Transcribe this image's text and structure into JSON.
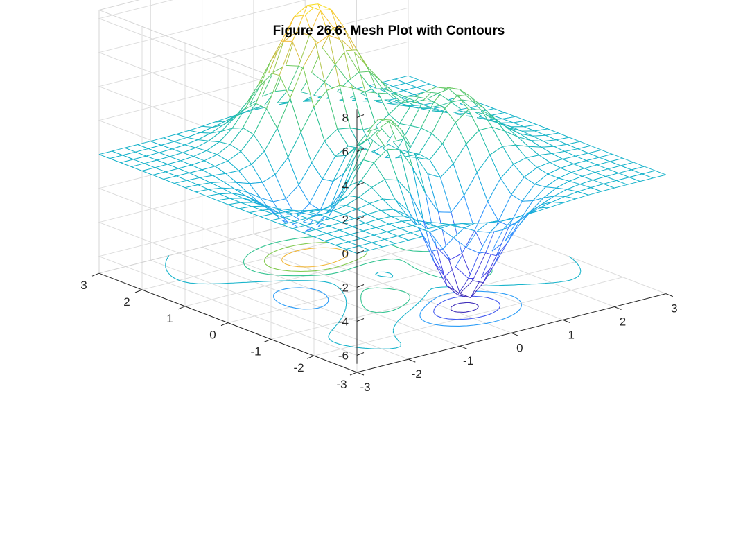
{
  "chart_data": {
    "type": "surface",
    "subtype": "mesh with contours below",
    "title": "Figure 26.6: Mesh Plot with Contours",
    "xlabel": "",
    "ylabel": "",
    "zlabel": "",
    "function": "peaks",
    "x_range": [
      -3,
      3
    ],
    "y_range": [
      -3,
      3
    ],
    "z_range": [
      -6.55,
      8.1
    ],
    "xlim": [
      -3,
      3
    ],
    "ylim": [
      -3,
      3
    ],
    "zlim": [
      -6.5,
      8
    ],
    "z_plot_limits": [
      -7,
      8.5
    ],
    "mesh_resolution": 25,
    "x_ticks": [
      "-3",
      "-2",
      "-1",
      "0",
      "1",
      "2",
      "3"
    ],
    "y_ticks": [
      "-3",
      "-2",
      "-1",
      "0",
      "1",
      "2",
      "3"
    ],
    "z_ticks": [
      "-6",
      "-4",
      "-2",
      "0",
      "2",
      "4",
      "6",
      "8"
    ],
    "extrema": [
      {
        "label": "peak",
        "x": -0.009,
        "y": 1.581,
        "z": 8.1
      },
      {
        "label": "local peak",
        "x": 1.286,
        "y": -0.005,
        "z": 3.78
      },
      {
        "label": "local peak",
        "x": -0.46,
        "y": -0.63,
        "z": 3.6
      },
      {
        "label": "trough",
        "x": 0.228,
        "y": -1.626,
        "z": -6.55
      },
      {
        "label": "trough",
        "x": -1.35,
        "y": 0.2,
        "z": -3.05
      }
    ],
    "contour_levels": [
      -6,
      -4,
      -2,
      0.02,
      2,
      4,
      6
    ],
    "colormap": [
      "#3e26a8",
      "#4746eb",
      "#2f97ff",
      "#15b1d3",
      "#2dc397",
      "#7ecc53",
      "#f2b83a",
      "#f9e525"
    ],
    "grid": true,
    "box": "three back planes"
  }
}
